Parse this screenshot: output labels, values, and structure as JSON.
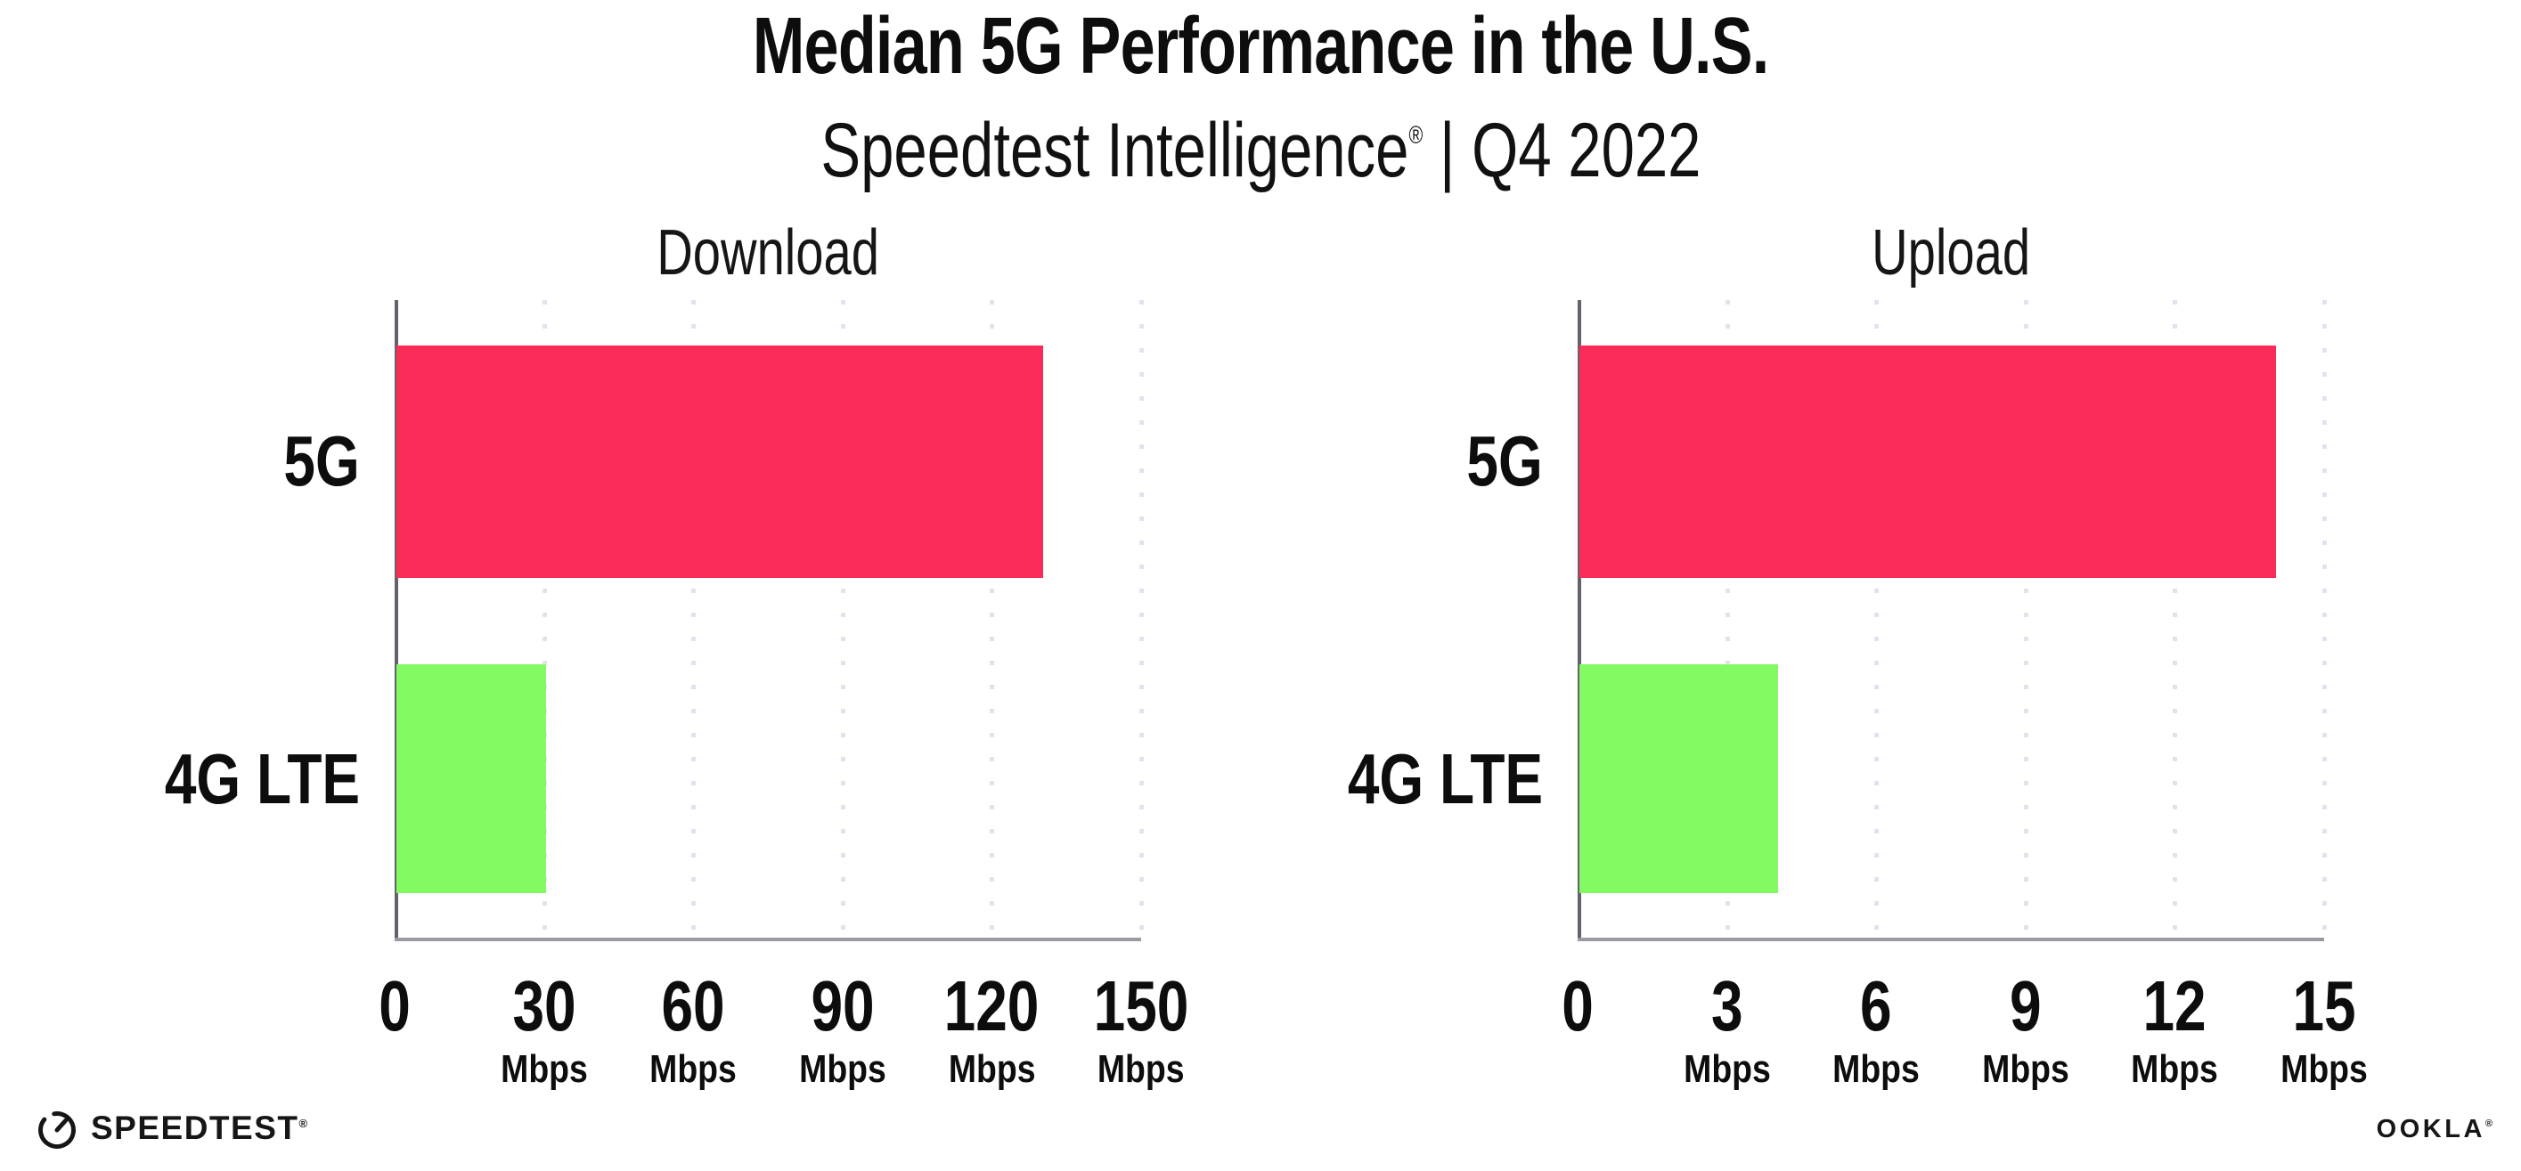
{
  "header": {
    "title": "Median 5G Performance in the U.S.",
    "subtitle": {
      "brand": "Speedtest Intelligence",
      "trademark": "®",
      "separator": "|",
      "period": "Q4 2022"
    }
  },
  "chart_data": [
    {
      "type": "bar",
      "orientation": "horizontal",
      "title": "Download",
      "categories": [
        "5G",
        "4G LTE"
      ],
      "values": [
        130,
        30
      ],
      "unit": "Mbps",
      "xlim": [
        0,
        150
      ],
      "xticks": [
        0,
        30,
        60,
        90,
        120,
        150
      ],
      "tick_unit": "Mbps",
      "colors": [
        "#fb2b57",
        "#83fa62"
      ],
      "grid": "dotted-vertical",
      "legend": "none"
    },
    {
      "type": "bar",
      "orientation": "horizontal",
      "title": "Upload",
      "categories": [
        "5G",
        "4G LTE"
      ],
      "values": [
        14,
        4
      ],
      "unit": "Mbps",
      "xlim": [
        0,
        15
      ],
      "xticks": [
        0,
        3,
        6,
        9,
        12,
        15
      ],
      "tick_unit": "Mbps",
      "colors": [
        "#fb2b57",
        "#83fa62"
      ],
      "grid": "dotted-vertical",
      "legend": "none"
    }
  ],
  "footer": {
    "speedtest_wordmark": "SPEEDTEST",
    "speedtest_trademark": "®",
    "ookla_wordmark": "OOKLA",
    "ookla_trademark": "®"
  },
  "colors": {
    "bar_5g": "#fb2b57",
    "bar_4g_lte": "#83fa62",
    "axis_line": "#9a9aa2",
    "axis_spine": "#62626b",
    "grid_dot": "#e2e2ef",
    "text": "#0d0d0d",
    "background": "#ffffff"
  }
}
